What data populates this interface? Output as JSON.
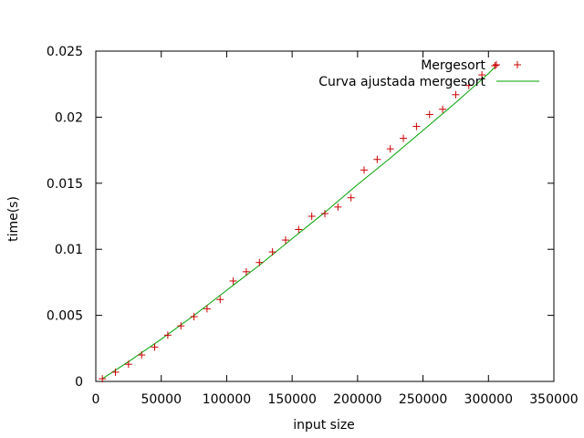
{
  "chart_data": {
    "type": "scatter",
    "xlabel": "input size",
    "ylabel": "time(s)",
    "xlim": [
      0,
      350000
    ],
    "ylim": [
      0,
      0.025
    ],
    "x_ticks": [
      0,
      50000,
      100000,
      150000,
      200000,
      250000,
      300000,
      350000
    ],
    "x_tick_labels": [
      "0",
      "50000",
      "100000",
      "150000",
      "200000",
      "250000",
      "300000",
      "350000"
    ],
    "y_ticks": [
      0,
      0.005,
      0.01,
      0.015,
      0.02,
      0.025
    ],
    "y_tick_labels": [
      "0",
      "0.005",
      "0.01",
      "0.015",
      "0.02",
      "0.025"
    ],
    "grid": false,
    "legend_position": "top-right",
    "series": [
      {
        "name": "Mergesort",
        "style": "points",
        "marker": "+",
        "color": "#cc0000",
        "x": [
          5000,
          15000,
          25000,
          35000,
          45000,
          55000,
          65000,
          75000,
          85000,
          95000,
          105000,
          115000,
          125000,
          135000,
          145000,
          155000,
          165000,
          175000,
          185000,
          195000,
          205000,
          215000,
          225000,
          235000,
          245000,
          255000,
          265000,
          275000,
          285000,
          295000,
          305000
        ],
        "y": [
          0.0002,
          0.0007,
          0.0013,
          0.002,
          0.0026,
          0.0035,
          0.0042,
          0.0049,
          0.0055,
          0.0062,
          0.0076,
          0.0083,
          0.009,
          0.0098,
          0.0107,
          0.0115,
          0.0125,
          0.0127,
          0.0132,
          0.0139,
          0.016,
          0.0168,
          0.0176,
          0.0184,
          0.0193,
          0.0202,
          0.0206,
          0.0217,
          0.0224,
          0.0232,
          0.0239
        ]
      },
      {
        "name": "Curva ajustada mergesort",
        "style": "line",
        "color": "#00a000",
        "x": [
          5000,
          25000,
          50000,
          75000,
          100000,
          125000,
          150000,
          175000,
          200000,
          225000,
          250000,
          275000,
          300000,
          305000
        ],
        "y": [
          0.0002,
          0.0015,
          0.0032,
          0.005,
          0.0069,
          0.0088,
          0.0108,
          0.0128,
          0.0149,
          0.0169,
          0.019,
          0.0211,
          0.0233,
          0.0238
        ]
      }
    ]
  }
}
